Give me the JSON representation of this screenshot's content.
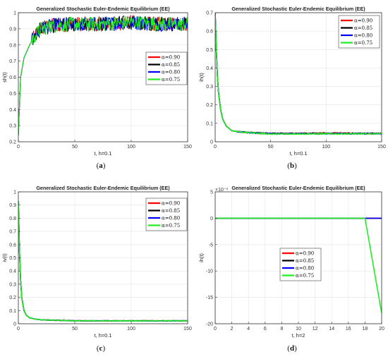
{
  "legend_labels": [
    "α=0.90",
    "α=0.85",
    "α=0.80",
    "α=0.75"
  ],
  "series_colors": [
    "#ff0000",
    "#000000",
    "#0000ff",
    "#22ee22"
  ],
  "chart_data": [
    {
      "type": "line",
      "panel_caption": "(a)",
      "title": "Generalized Stochastic Euler-Endemic Equilibrium (EE)",
      "xlabel": "t, h=0.1",
      "ylabel": "sh(t)",
      "xlim": [
        0,
        150
      ],
      "ylim": [
        0.2,
        1.0
      ],
      "xticks": [
        0,
        50,
        100,
        150
      ],
      "yticks": [
        0.2,
        0.3,
        0.4,
        0.5,
        0.6,
        0.7,
        0.8,
        0.9,
        1.0
      ],
      "ytick_labels": [
        "0.2",
        "0.3",
        "0.4",
        "0.5",
        "0.6",
        "0.7",
        "0.8",
        "0.9",
        "1"
      ],
      "grid": true,
      "legend_position": "right-middle",
      "behavior": "rises from 0.24 at t=0 to about 0.9 by t=20, then fluctuates noisily between 0.85 and 1.0",
      "series": [
        {
          "name": "α=0.90",
          "x": [
            0,
            2,
            5,
            10,
            15,
            20,
            30,
            50,
            75,
            100,
            125,
            150
          ],
          "y": [
            0.24,
            0.6,
            0.72,
            0.8,
            0.86,
            0.9,
            0.92,
            0.93,
            0.93,
            0.94,
            0.93,
            0.93
          ]
        },
        {
          "name": "α=0.85",
          "x": [
            0,
            2,
            5,
            10,
            15,
            20,
            30,
            50,
            75,
            100,
            125,
            150
          ],
          "y": [
            0.24,
            0.6,
            0.72,
            0.8,
            0.86,
            0.9,
            0.92,
            0.93,
            0.93,
            0.94,
            0.93,
            0.93
          ]
        },
        {
          "name": "α=0.80",
          "x": [
            0,
            2,
            5,
            10,
            15,
            20,
            30,
            50,
            75,
            100,
            125,
            150
          ],
          "y": [
            0.24,
            0.6,
            0.72,
            0.8,
            0.86,
            0.9,
            0.92,
            0.93,
            0.93,
            0.94,
            0.93,
            0.93
          ]
        },
        {
          "name": "α=0.75",
          "x": [
            0,
            2,
            5,
            10,
            15,
            20,
            30,
            50,
            75,
            100,
            125,
            150
          ],
          "y": [
            0.24,
            0.6,
            0.72,
            0.8,
            0.86,
            0.9,
            0.92,
            0.93,
            0.93,
            0.94,
            0.93,
            0.93
          ]
        }
      ]
    },
    {
      "type": "line",
      "panel_caption": "(b)",
      "title": "Generalized Stochastic Euler-Endemic Equilibrium (EE)",
      "xlabel": "t, h=0.1",
      "ylabel": "ih(t)",
      "xlim": [
        0,
        150
      ],
      "ylim": [
        0,
        0.7
      ],
      "xticks": [
        0,
        50,
        100,
        150
      ],
      "yticks": [
        0,
        0.1,
        0.2,
        0.3,
        0.4,
        0.5,
        0.6,
        0.7
      ],
      "ytick_labels": [
        "0",
        "0.1",
        "0.2",
        "0.3",
        "0.4",
        "0.5",
        "0.6",
        "0.7"
      ],
      "grid": true,
      "legend_position": "top-right",
      "behavior": "decays from 0.7 at t=0 to about 0.05 by t=25, then stays near 0.045",
      "series": [
        {
          "name": "α=0.90",
          "x": [
            0,
            1,
            2,
            3,
            5,
            7,
            10,
            15,
            20,
            30,
            50,
            75,
            100,
            125,
            150
          ],
          "y": [
            0.7,
            0.5,
            0.36,
            0.27,
            0.17,
            0.12,
            0.085,
            0.06,
            0.055,
            0.05,
            0.045,
            0.045,
            0.048,
            0.045,
            0.045
          ]
        },
        {
          "name": "α=0.85",
          "x": [
            0,
            1,
            2,
            3,
            5,
            7,
            10,
            15,
            20,
            30,
            50,
            75,
            100,
            125,
            150
          ],
          "y": [
            0.7,
            0.5,
            0.36,
            0.27,
            0.17,
            0.12,
            0.085,
            0.06,
            0.055,
            0.05,
            0.045,
            0.045,
            0.045,
            0.045,
            0.045
          ]
        },
        {
          "name": "α=0.80",
          "x": [
            0,
            1,
            2,
            3,
            5,
            7,
            10,
            15,
            20,
            30,
            50,
            75,
            100,
            125,
            150
          ],
          "y": [
            0.7,
            0.5,
            0.36,
            0.27,
            0.17,
            0.12,
            0.085,
            0.06,
            0.055,
            0.05,
            0.043,
            0.044,
            0.044,
            0.044,
            0.044
          ]
        },
        {
          "name": "α=0.75",
          "x": [
            0,
            1,
            2,
            3,
            5,
            7,
            10,
            15,
            20,
            30,
            50,
            75,
            100,
            125,
            150
          ],
          "y": [
            0.7,
            0.5,
            0.36,
            0.27,
            0.17,
            0.12,
            0.085,
            0.06,
            0.055,
            0.05,
            0.042,
            0.043,
            0.043,
            0.043,
            0.044
          ]
        }
      ]
    },
    {
      "type": "line",
      "panel_caption": "(c)",
      "title": "Generalized Stochastic Euler-Endemic Equilibrium (EE)",
      "xlabel": "t, h=0.1",
      "ylabel": "iv(t)",
      "xlim": [
        0,
        150
      ],
      "ylim": [
        0,
        1.0
      ],
      "xticks": [
        0,
        50,
        100,
        150
      ],
      "yticks": [
        0,
        0.1,
        0.2,
        0.3,
        0.4,
        0.5,
        0.6,
        0.7,
        0.8,
        0.9,
        1.0
      ],
      "ytick_labels": [
        "0",
        "0.1",
        "0.2",
        "0.3",
        "0.4",
        "0.5",
        "0.6",
        "0.7",
        "0.8",
        "0.9",
        "1"
      ],
      "grid": true,
      "legend_position": "top-right",
      "behavior": "decays from 0.93 at t=0 to about 0.03 by t=25, then stays near 0.02",
      "series": [
        {
          "name": "α=0.90",
          "x": [
            0,
            1,
            2,
            3,
            5,
            7,
            10,
            15,
            20,
            30,
            50,
            75,
            100,
            125,
            150
          ],
          "y": [
            0.93,
            0.55,
            0.33,
            0.2,
            0.1,
            0.065,
            0.045,
            0.035,
            0.03,
            0.027,
            0.022,
            0.022,
            0.022,
            0.022,
            0.022
          ]
        },
        {
          "name": "α=0.85",
          "x": [
            0,
            1,
            2,
            3,
            5,
            7,
            10,
            15,
            20,
            30,
            50,
            75,
            100,
            125,
            150
          ],
          "y": [
            0.93,
            0.55,
            0.33,
            0.2,
            0.1,
            0.065,
            0.045,
            0.035,
            0.03,
            0.027,
            0.022,
            0.022,
            0.022,
            0.022,
            0.022
          ]
        },
        {
          "name": "α=0.80",
          "x": [
            0,
            1,
            2,
            3,
            5,
            7,
            10,
            15,
            20,
            30,
            50,
            75,
            100,
            125,
            150
          ],
          "y": [
            0.93,
            0.55,
            0.33,
            0.2,
            0.1,
            0.065,
            0.045,
            0.035,
            0.03,
            0.027,
            0.022,
            0.022,
            0.022,
            0.022,
            0.022
          ]
        },
        {
          "name": "α=0.75",
          "x": [
            0,
            1,
            2,
            3,
            5,
            7,
            10,
            15,
            20,
            30,
            50,
            75,
            100,
            125,
            150
          ],
          "y": [
            0.93,
            0.55,
            0.33,
            0.2,
            0.1,
            0.065,
            0.045,
            0.035,
            0.03,
            0.027,
            0.022,
            0.022,
            0.022,
            0.022,
            0.022
          ]
        }
      ]
    },
    {
      "type": "line",
      "panel_caption": "(d)",
      "title": "Generalized Stochastic Euler-Endemic Equilibrium (EE)",
      "xlabel": "t, h=2",
      "ylabel": "ih(t)",
      "y_scale_label": "×10⁻³",
      "xlim": [
        0,
        20
      ],
      "ylim": [
        -20,
        5
      ],
      "xticks": [
        0,
        2,
        4,
        6,
        8,
        10,
        12,
        14,
        16,
        18,
        20
      ],
      "yticks": [
        -20,
        -15,
        -10,
        -5,
        0,
        5
      ],
      "ytick_labels": [
        "-20",
        "-15",
        "-10",
        "-5",
        "0",
        "5"
      ],
      "grid": true,
      "legend_position": "center",
      "behavior": "all series flat at 0; α=0.75 drops linearly after t=18 to about -18 at t=20",
      "series": [
        {
          "name": "α=0.90",
          "x": [
            0,
            18,
            20
          ],
          "y": [
            0,
            0,
            0
          ]
        },
        {
          "name": "α=0.85",
          "x": [
            0,
            18,
            20
          ],
          "y": [
            0,
            0,
            0
          ]
        },
        {
          "name": "α=0.80",
          "x": [
            0,
            18,
            20
          ],
          "y": [
            0,
            0,
            0
          ]
        },
        {
          "name": "α=0.75",
          "x": [
            0,
            18,
            20
          ],
          "y": [
            0,
            0,
            -18
          ]
        }
      ]
    }
  ]
}
